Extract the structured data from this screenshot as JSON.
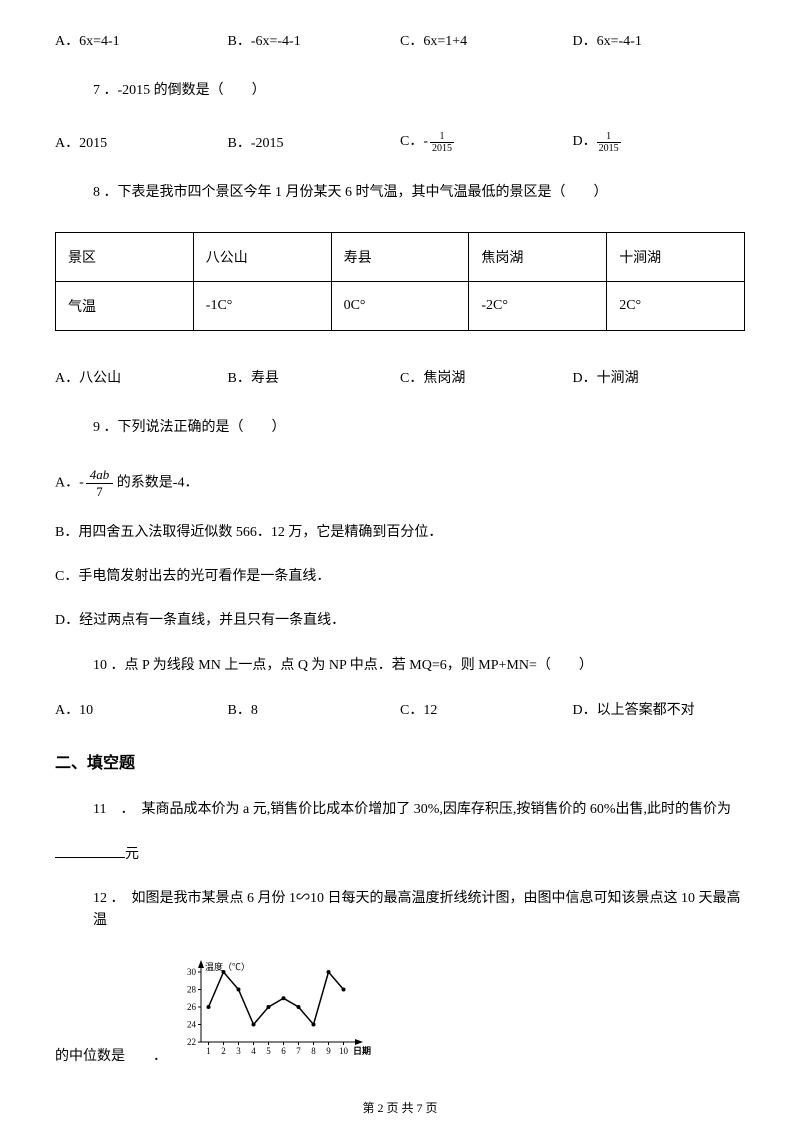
{
  "q6": {
    "A": "A．6x=4-1",
    "B": "B．-6x=-4-1",
    "C": "C．6x=1+4",
    "D": "D．6x=-4-1"
  },
  "q7": {
    "stem": "7 ．-2015 的倒数是（　　）",
    "A": "A．2015",
    "B": "B．-2015",
    "C_prefix": "C．",
    "C_neg": "-",
    "D_prefix": "D．",
    "frac_top": "1",
    "frac_bot": "2015"
  },
  "q8": {
    "stem": "8 ．下表是我市四个景区今年 1 月份某天 6 时气温，其中气温最低的景区是（　　）",
    "headers": [
      "景区",
      "八公山",
      "寿县",
      "焦岗湖",
      "十涧湖"
    ],
    "row_label": "气温",
    "temps": [
      "-1C°",
      "0C°",
      "-2C°",
      "2C°"
    ],
    "A": "A．八公山",
    "B": "B．寿县",
    "C": "C．焦岗湖",
    "D": "D．十涧湖"
  },
  "q9": {
    "stem": "9 ．下列说法正确的是（　　）",
    "A_prefix": "A．",
    "A_neg": "-",
    "A_frac_top": "4ab",
    "A_frac_bot": "7",
    "A_suffix": " 的系数是-4．",
    "B": "B．用四舍五入法取得近似数 566．12 万，它是精确到百分位．",
    "C": "C．手电筒发射出去的光可看作是一条直线．",
    "D": "D．经过两点有一条直线，并且只有一条直线．"
  },
  "q10": {
    "stem": "10 ．点 P 为线段 MN 上一点，点 Q 为 NP 中点．若 MQ=6，则 MP+MN=（　　）",
    "A": "A．10",
    "B": "B．8",
    "C": "C．12",
    "D": "D．以上答案都不对"
  },
  "section2": "二、填空题",
  "q11": {
    "line1": "11　．　某商品成本价为 a 元,销售价比成本价增加了 30%,因库存积压,按销售价的 60%出售,此时的售价为",
    "suffix": "元"
  },
  "q12": {
    "line1": "12 ．　如图是我市某景点 6 月份 1∽10 日每天的最高温度折线统计图，由图中信息可知该景点这 10 天最高温",
    "tail_prefix": "的中位数是　　．"
  },
  "chart": {
    "y_label": "温度（℃）",
    "x_label": "日期",
    "y_ticks": [
      "30",
      "28",
      "26",
      "24",
      "22"
    ],
    "x_ticks": [
      "1",
      "2",
      "3",
      "4",
      "5",
      "6",
      "7",
      "8",
      "9",
      "10"
    ],
    "values": [
      26,
      30,
      28,
      24,
      26,
      27,
      26,
      24,
      30,
      28
    ],
    "line_color": "#000000",
    "axis_color": "#000000",
    "bg": "#ffffff",
    "font_size": 9
  },
  "footer": "第 2 页 共 7 页"
}
